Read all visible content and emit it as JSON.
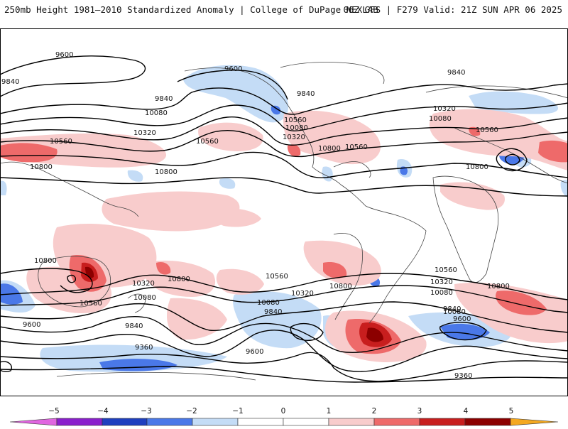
{
  "header": {
    "title_left": "250mb Height 1981–2010 Standardized Anomaly | College of DuPage NEXLAB",
    "title_right": "06Z GFS | F279 Valid: 21Z SUN APR 06 2025"
  },
  "colors": {
    "neg5": "#e066e0",
    "neg4": "#8a1fcc",
    "neg3": "#1f3fbf",
    "neg2": "#4a78e8",
    "neg1": "#c4dcf6",
    "zero": "#ffffff",
    "pos1": "#f8cccc",
    "pos2": "#ee6a6a",
    "pos3": "#c81e1e",
    "pos4": "#8c0000",
    "pos5": "#f4a820",
    "contour": "#000000",
    "coast": "#444444"
  },
  "contour_labels": {
    "l9600a": "9600",
    "l9600b": "9600",
    "l9600c": "9600",
    "l9600d": "9600",
    "l9600e": "9600",
    "l9840a": "9840",
    "l9840b": "9840",
    "l9840c": "9840",
    "l9840d": "9840",
    "l9840e": "9840",
    "l9840f": "9840",
    "l10080a": "10080",
    "l10080b": "10080",
    "l10080c": "10080",
    "l10080d": "10080",
    "l10080e": "10080",
    "l10080f": "10080",
    "l10080g": "10080",
    "l10320a": "10320",
    "l10320b": "10320",
    "l10320c": "10320",
    "l10320d": "10320",
    "l10320e": "10320",
    "l10320f": "10320",
    "l10560a": "10560",
    "l10560b": "10560",
    "l10560c": "10560",
    "l10560d": "10560",
    "l10560e": "10560",
    "l10560f": "10560",
    "l10560g": "10560",
    "l10560h": "10560",
    "l10800a": "10800",
    "l10800b": "10800",
    "l10800c": "10800",
    "l10800d": "10800",
    "l10800e": "10800",
    "l10800f": "10800",
    "l10800g": "10800",
    "l10800h": "10800",
    "l9360a": "9360",
    "l9360b": "9360"
  },
  "colorbar": {
    "ticks": [
      "−5",
      "−4",
      "−3",
      "−2",
      "−1",
      "0",
      "1",
      "2",
      "3",
      "4",
      "5"
    ]
  }
}
